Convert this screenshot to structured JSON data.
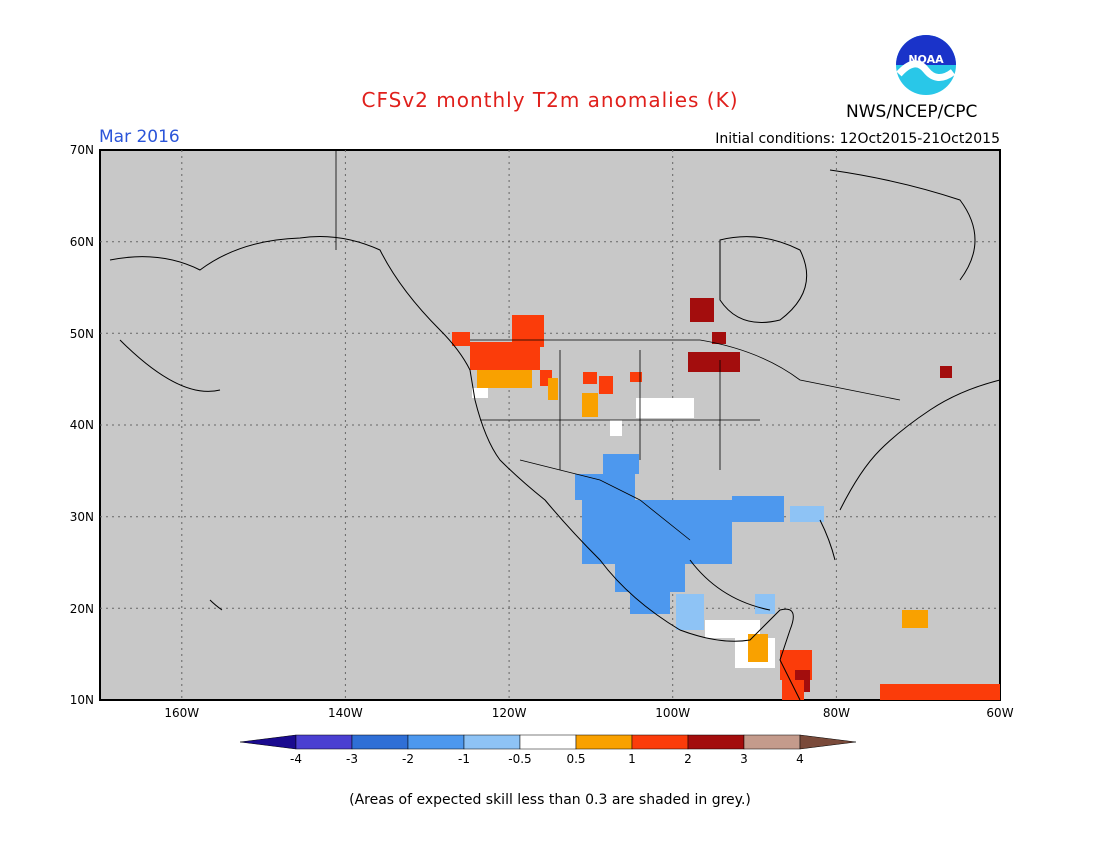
{
  "header": {
    "title": "CFSv2 monthly T2m anomalies (K)",
    "month": "Mar 2016",
    "initial_conditions": "Initial conditions: 12Oct2015-21Oct2015",
    "agency": "NWS/NCEP/CPC",
    "logo_text": "NOAA"
  },
  "colors": {
    "title": "#e0201c",
    "month": "#2b55d9",
    "land_skill_mask": "#c8c8c8",
    "map_background": "#ffffff"
  },
  "map": {
    "lat_labels": [
      "70N",
      "60N",
      "50N",
      "40N",
      "30N",
      "20N",
      "10N"
    ],
    "lon_labels": [
      "160W",
      "140W",
      "120W",
      "100W",
      "80W",
      "60W"
    ]
  },
  "colorbar": {
    "labels": [
      "-4",
      "-3",
      "-2",
      "-1",
      "-0.5",
      "0.5",
      "1",
      "2",
      "3",
      "4"
    ],
    "colors": [
      "#1a0a8f",
      "#4a3fd1",
      "#2f6fd6",
      "#4d98ee",
      "#8ec3f5",
      "#ffffff",
      "#f9a100",
      "#fb3c0a",
      "#a30d0d",
      "#c49b8c",
      "#7a4a3a"
    ]
  },
  "footer": {
    "note": "(Areas of expected skill less than 0.3 are shaded in grey.)"
  }
}
